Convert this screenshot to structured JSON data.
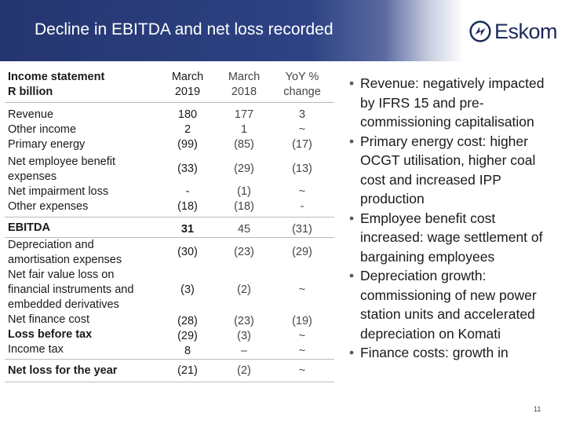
{
  "title": "Decline in EBITDA and net loss recorded",
  "logo": {
    "text": "Eskom",
    "icon": "eskom-logo-icon"
  },
  "table": {
    "header": {
      "label_lines": [
        "Income statement",
        "R billion"
      ],
      "c1": [
        "March",
        "2019"
      ],
      "c2": [
        "March",
        "2018"
      ],
      "c3": [
        "YoY %",
        "change"
      ]
    },
    "groups": [
      {
        "labels": [
          "Revenue",
          "Other income",
          "Primary energy"
        ],
        "c1": [
          "180",
          "2",
          "(99)"
        ],
        "c2": [
          "177",
          "1",
          "(85)"
        ],
        "c3": [
          "3",
          "~",
          "(17)"
        ]
      },
      {
        "labels": [
          "Net employee benefit",
          "expenses"
        ],
        "c1": [
          "(33)"
        ],
        "c2": [
          "(29)"
        ],
        "c3": [
          "(13)"
        ]
      },
      {
        "labels": [
          "Net impairment loss",
          "Other expenses"
        ],
        "c1": [
          "-",
          "(18)"
        ],
        "c2": [
          "(1)",
          "(18)"
        ],
        "c3": [
          "~",
          "-"
        ]
      },
      {
        "labels": [
          "EBITDA"
        ],
        "c1": [
          "31"
        ],
        "c2": [
          "45"
        ],
        "c3": [
          "(31)"
        ]
      },
      {
        "labels": [
          "Depreciation and",
          "amortisation expenses"
        ],
        "c1": [
          "(30)"
        ],
        "c2": [
          "(23)"
        ],
        "c3": [
          "(29)"
        ]
      },
      {
        "labels": [
          "Net fair value loss on",
          "financial instruments and",
          "embedded derivatives"
        ],
        "c1": [
          "(3)"
        ],
        "c2": [
          "(2)"
        ],
        "c3": [
          "~"
        ]
      },
      {
        "labels": [
          "Net finance cost",
          "Loss before tax",
          "Income tax"
        ],
        "c1": [
          "(28)",
          "(29)",
          "8"
        ],
        "c2": [
          "(23)",
          "(3)",
          "–"
        ],
        "c3": [
          "(19)",
          "~",
          "~"
        ]
      },
      {
        "labels": [
          "Net loss for the year"
        ],
        "c1": [
          "(21)"
        ],
        "c2": [
          "(2)"
        ],
        "c3": [
          "~"
        ]
      }
    ]
  },
  "bullets": [
    "Revenue: negatively impacted by IFRS 15 and pre-commissioning capitalisation",
    "Primary energy cost: higher OCGT utilisation, higher coal cost and increased IPP production",
    "Employee benefit cost increased:  wage settlement of bargaining employees",
    "Depreciation growth: commissioning of new power station units and accelerated depreciation on Komati",
    "Finance costs: growth in"
  ],
  "page_number": "11"
}
